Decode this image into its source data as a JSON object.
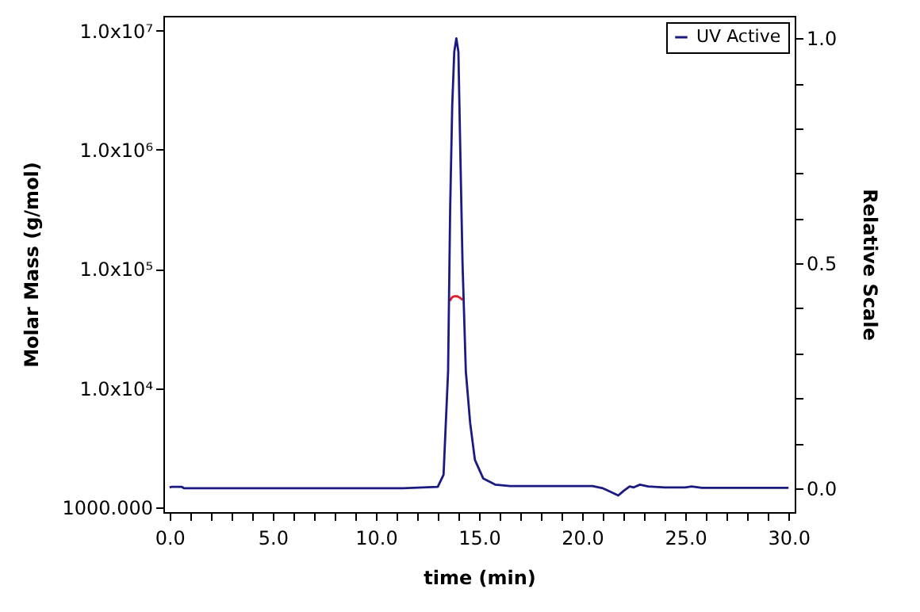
{
  "chart_data": {
    "type": "line",
    "xlabel": "time (min)",
    "ylabel": "Molar Mass (g/mol)",
    "y2label": "Relative Scale",
    "xlim": [
      -0.3,
      30.3
    ],
    "xticks": [
      {
        "value": 0,
        "label": "0.0"
      },
      {
        "value": 1,
        "label": null
      },
      {
        "value": 2,
        "label": null
      },
      {
        "value": 3,
        "label": null
      },
      {
        "value": 4,
        "label": null
      },
      {
        "value": 5,
        "label": "5.0"
      },
      {
        "value": 6,
        "label": null
      },
      {
        "value": 7,
        "label": null
      },
      {
        "value": 8,
        "label": null
      },
      {
        "value": 9,
        "label": null
      },
      {
        "value": 10,
        "label": "10.0"
      },
      {
        "value": 11,
        "label": null
      },
      {
        "value": 12,
        "label": null
      },
      {
        "value": 13,
        "label": null
      },
      {
        "value": 14,
        "label": null
      },
      {
        "value": 15,
        "label": "15.0"
      },
      {
        "value": 16,
        "label": null
      },
      {
        "value": 17,
        "label": null
      },
      {
        "value": 18,
        "label": null
      },
      {
        "value": 19,
        "label": null
      },
      {
        "value": 20,
        "label": "20.0"
      },
      {
        "value": 21,
        "label": null
      },
      {
        "value": 22,
        "label": null
      },
      {
        "value": 23,
        "label": null
      },
      {
        "value": 24,
        "label": null
      },
      {
        "value": 25,
        "label": "25.0"
      },
      {
        "value": 26,
        "label": null
      },
      {
        "value": 27,
        "label": null
      },
      {
        "value": 28,
        "label": null
      },
      {
        "value": 29,
        "label": null
      },
      {
        "value": 30,
        "label": "30.0"
      }
    ],
    "ylim": [
      912,
      13300000
    ],
    "log": "y",
    "yticks": [
      {
        "value": 1000,
        "label": "1000.000"
      },
      {
        "value": 10000,
        "label": "1.0x10⁴"
      },
      {
        "value": 100000,
        "label": "1.0x10⁵"
      },
      {
        "value": 1000000,
        "label": "1.0x10⁶"
      },
      {
        "value": 10000000,
        "label": "1.0x10⁷"
      }
    ],
    "y2lim": [
      -0.053,
      1.05
    ],
    "y2ticks": [
      {
        "value": 0,
        "label": "0.0"
      },
      {
        "value": 0.1,
        "label": null
      },
      {
        "value": 0.2,
        "label": null
      },
      {
        "value": 0.3,
        "label": null
      },
      {
        "value": 0.4,
        "label": null
      },
      {
        "value": 0.5,
        "label": "0.5"
      },
      {
        "value": 0.6,
        "label": null
      },
      {
        "value": 0.7,
        "label": null
      },
      {
        "value": 0.8,
        "label": null
      },
      {
        "value": 0.9,
        "label": null
      },
      {
        "value": 1.0,
        "label": "1.0"
      }
    ],
    "grid": false,
    "legend": "top right",
    "marker": "none",
    "line_style": "solid",
    "series": [
      {
        "color": "#e0202a",
        "x": [
          13.58,
          13.7,
          13.8,
          13.95,
          14.1,
          14.2
        ],
        "values": [
          54000,
          58000,
          59000,
          59000,
          57000,
          55000
        ]
      },
      {
        "name": "UV Active",
        "color": "#1a1a80",
        "axis": "y2",
        "x": [
          0.0,
          0.1,
          0.6,
          0.7,
          11.3,
          13.0,
          13.28,
          13.5,
          13.6,
          13.7,
          13.8,
          13.9,
          14.0,
          14.1,
          14.2,
          14.36,
          14.57,
          14.8,
          15.2,
          15.8,
          16.5,
          20.5,
          21.0,
          21.75,
          22.0,
          22.3,
          22.5,
          22.8,
          23.2,
          24.0,
          25.0,
          25.3,
          25.8,
          30.0
        ],
        "values": [
          0.002,
          0.003,
          0.003,
          0.0,
          0.0,
          0.003,
          0.03,
          0.26,
          0.62,
          0.85,
          0.97,
          1.0,
          0.97,
          0.73,
          0.5,
          0.26,
          0.145,
          0.063,
          0.022,
          0.008,
          0.005,
          0.005,
          0.0,
          -0.016,
          -0.006,
          0.004,
          0.002,
          0.008,
          0.004,
          0.002,
          0.002,
          0.004,
          0.001,
          0.001
        ]
      }
    ]
  }
}
